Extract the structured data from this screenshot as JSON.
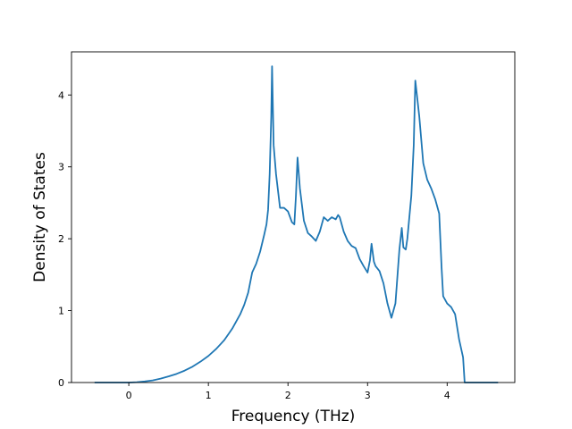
{
  "chart_data": {
    "type": "line",
    "title": "",
    "xlabel": "Frequency (THz)",
    "ylabel": "Density of States",
    "xlim": [
      -0.72,
      4.85
    ],
    "ylim": [
      0,
      4.6
    ],
    "xticks": [
      "0",
      "1",
      "2",
      "3",
      "4"
    ],
    "xtick_values": [
      0,
      1,
      2,
      3,
      4
    ],
    "yticks": [
      "0",
      "1",
      "2",
      "3",
      "4"
    ],
    "ytick_values": [
      0,
      1,
      2,
      3,
      4
    ],
    "grid": false,
    "line_color": "#1f77b4",
    "series": [
      {
        "x": [
          -0.43,
          0.0,
          0.1,
          0.2,
          0.3,
          0.4,
          0.5,
          0.6,
          0.7,
          0.8,
          0.9,
          1.0,
          1.1,
          1.2,
          1.3,
          1.4,
          1.45,
          1.5,
          1.55,
          1.6,
          1.65,
          1.7,
          1.73,
          1.75,
          1.77,
          1.79,
          1.8,
          1.82,
          1.85,
          1.9,
          1.95,
          2.0,
          2.05,
          2.08,
          2.1,
          2.12,
          2.15,
          2.2,
          2.25,
          2.3,
          2.35,
          2.4,
          2.45,
          2.5,
          2.55,
          2.6,
          2.63,
          2.65,
          2.7,
          2.75,
          2.8,
          2.85,
          2.9,
          2.95,
          3.0,
          3.03,
          3.05,
          3.08,
          3.1,
          3.15,
          3.2,
          3.25,
          3.3,
          3.35,
          3.4,
          3.43,
          3.45,
          3.48,
          3.5,
          3.55,
          3.58,
          3.6,
          3.62,
          3.65,
          3.7,
          3.75,
          3.8,
          3.85,
          3.9,
          3.93,
          3.95,
          4.0,
          4.05,
          4.1,
          4.15,
          4.2,
          4.22,
          4.25,
          4.3,
          4.64
        ],
        "y": [
          0,
          0,
          0.005,
          0.015,
          0.03,
          0.055,
          0.085,
          0.12,
          0.165,
          0.22,
          0.29,
          0.37,
          0.47,
          0.59,
          0.75,
          0.95,
          1.08,
          1.25,
          1.53,
          1.65,
          1.82,
          2.05,
          2.2,
          2.4,
          2.9,
          3.7,
          4.4,
          3.3,
          2.9,
          2.43,
          2.43,
          2.38,
          2.23,
          2.2,
          2.6,
          3.13,
          2.7,
          2.25,
          2.08,
          2.03,
          1.97,
          2.1,
          2.3,
          2.25,
          2.3,
          2.27,
          2.33,
          2.3,
          2.1,
          1.97,
          1.9,
          1.87,
          1.72,
          1.62,
          1.53,
          1.7,
          1.93,
          1.68,
          1.62,
          1.55,
          1.38,
          1.1,
          0.9,
          1.1,
          1.85,
          2.15,
          1.88,
          1.85,
          2.0,
          2.6,
          3.3,
          4.2,
          4.0,
          3.7,
          3.05,
          2.82,
          2.7,
          2.55,
          2.35,
          1.6,
          1.2,
          1.1,
          1.05,
          0.95,
          0.6,
          0.35,
          0.0,
          0.0,
          0.0,
          0.0
        ]
      }
    ]
  }
}
